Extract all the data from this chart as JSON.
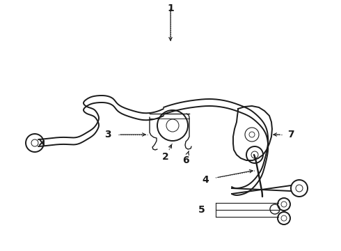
{
  "bg_color": "#ffffff",
  "line_color": "#1a1a1a",
  "label_color": "#000000",
  "fig_width": 4.9,
  "fig_height": 3.6,
  "dpi": 100,
  "label_fontsize": 10,
  "lw_bar": 1.4,
  "lw_detail": 1.0,
  "lw_leader": 0.7
}
